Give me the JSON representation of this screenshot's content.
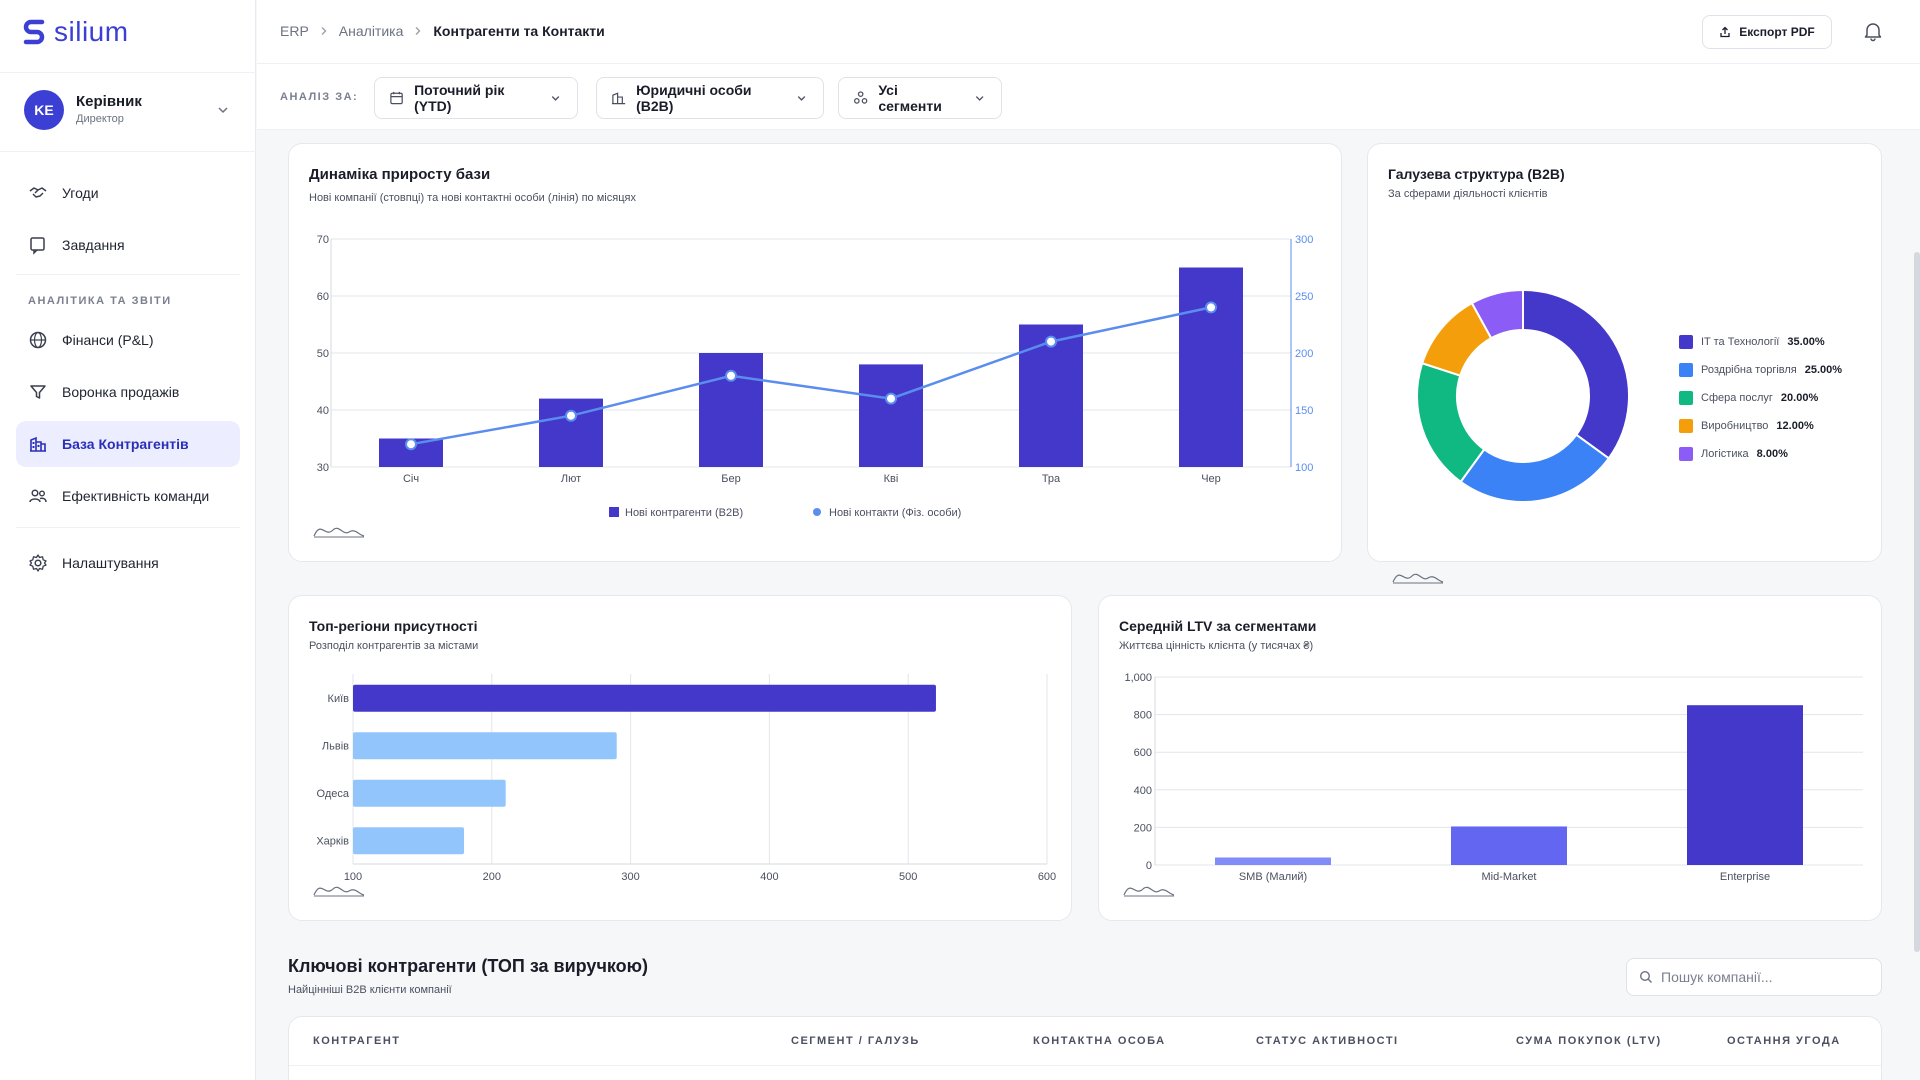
{
  "app": {
    "logo_text": "silium"
  },
  "user": {
    "initials": "KE",
    "name": "Керівник",
    "role": "Директор"
  },
  "sidebar": {
    "items_top": [
      {
        "label": "Угоди",
        "icon": "handshake-icon"
      },
      {
        "label": "Завдання",
        "icon": "task-icon"
      }
    ],
    "section_label": "АНАЛІТИКА ТА ЗВІТИ",
    "items_analytics": [
      {
        "label": "Фінанси (P&L)",
        "icon": "globe-icon"
      },
      {
        "label": "Воронка продажів",
        "icon": "funnel-icon"
      },
      {
        "label": "База Контрагентів",
        "icon": "building-icon",
        "active": true
      },
      {
        "label": "Ефективність команди",
        "icon": "team-icon"
      }
    ],
    "items_bottom": [
      {
        "label": "Налаштування",
        "icon": "gear-icon"
      }
    ]
  },
  "breadcrumb": {
    "root": "ERP",
    "parent": "Аналітика",
    "current": "Контрагенти та Контакти"
  },
  "topbar": {
    "export_label": "Експорт PDF"
  },
  "filters": {
    "label": "АНАЛІЗ ЗА:",
    "period": "Поточний рік (YTD)",
    "entity": "Юридичні особи (B2B)",
    "segment": "Усі сегменти"
  },
  "growth_card": {
    "title": "Динаміка приросту бази",
    "subtitle": "Нові компанії (стовпці) та нові контактні особи (лінія) по місяцях"
  },
  "industry_card": {
    "title": "Галузева структура (B2B)",
    "subtitle": "За сферами діяльності клієнтів"
  },
  "regions_card": {
    "title": "Топ-регіони присутності",
    "subtitle": "Розподіл контрагентів за містами"
  },
  "ltv_card": {
    "title": "Середній LTV за сегментами",
    "subtitle": "Життєва цінність клієнта (у тисячах ₴)"
  },
  "table": {
    "title": "Ключові контрагенти (ТОП за виручкою)",
    "subtitle": "Найцінніші B2B клієнти компанії",
    "search_placeholder": "Пошук компанії...",
    "columns": [
      "КОНТРАГЕНТ",
      "СЕГМЕНТ / ГАЛУЗЬ",
      "КОНТАКТНА ОСОБА",
      "СТАТУС АКТИВНОСТІ",
      "СУМА ПОКУПОК (LTV)",
      "ОСТАННЯ УГОДА"
    ]
  },
  "colors": {
    "accent": "#3b3fd4",
    "bar_dark": "#4338ca",
    "line_blue": "#5b8def",
    "light_blue": "#93c5fd",
    "mid_purple": "#6366f1"
  },
  "chart_data": [
    {
      "type": "bar",
      "categories": [
        "Січ",
        "Лют",
        "Бер",
        "Кві",
        "Тра",
        "Чер"
      ],
      "series": [
        {
          "name": "Нові контрагенти (B2B)",
          "type": "bar",
          "axis": "left",
          "values": [
            35,
            42,
            50,
            48,
            55,
            65
          ]
        },
        {
          "name": "Нові контакти (Фіз. особи)",
          "type": "line",
          "axis": "right",
          "values": [
            120,
            145,
            180,
            160,
            210,
            240
          ]
        }
      ],
      "y_left_ticks": [
        "70",
        "60",
        "50",
        "40",
        "30"
      ],
      "y_right_ticks": [
        "300",
        "250",
        "200",
        "150",
        "100"
      ],
      "ylim_left": [
        30,
        70
      ],
      "ylim_right": [
        100,
        300
      ],
      "legend_placement": "bottom"
    },
    {
      "type": "pie",
      "donut": true,
      "categories": [
        "IT та Технології",
        "Роздрібна торгівля",
        "Сфера послуг",
        "Виробництво",
        "Логістика"
      ],
      "values": [
        35,
        25,
        20,
        12,
        8
      ],
      "labels": [
        "35.00%",
        "25.00%",
        "20.00%",
        "12.00%",
        "8.00%"
      ],
      "colors": [
        "#4338ca",
        "#3b82f6",
        "#10b981",
        "#f59e0b",
        "#8b5cf6"
      ],
      "legend_placement": "right"
    },
    {
      "type": "bar",
      "orientation": "horizontal",
      "categories": [
        "Київ",
        "Львів",
        "Одеса",
        "Харків"
      ],
      "values": [
        520,
        290,
        210,
        180
      ],
      "x_ticks": [
        "100",
        "200",
        "300",
        "400",
        "500",
        "600"
      ],
      "xlim": [
        100,
        600
      ],
      "colors": [
        "#4338ca",
        "#93c5fd",
        "#93c5fd",
        "#93c5fd"
      ]
    },
    {
      "type": "bar",
      "categories": [
        "SMB (Малий)",
        "Mid-Market",
        "Enterprise"
      ],
      "values": [
        40,
        205,
        850
      ],
      "y_ticks": [
        "1,000",
        "800",
        "600",
        "400",
        "200",
        "0"
      ],
      "ylim": [
        0,
        1000
      ],
      "colors": [
        "#818cf8",
        "#6366f1",
        "#4338ca"
      ]
    }
  ]
}
